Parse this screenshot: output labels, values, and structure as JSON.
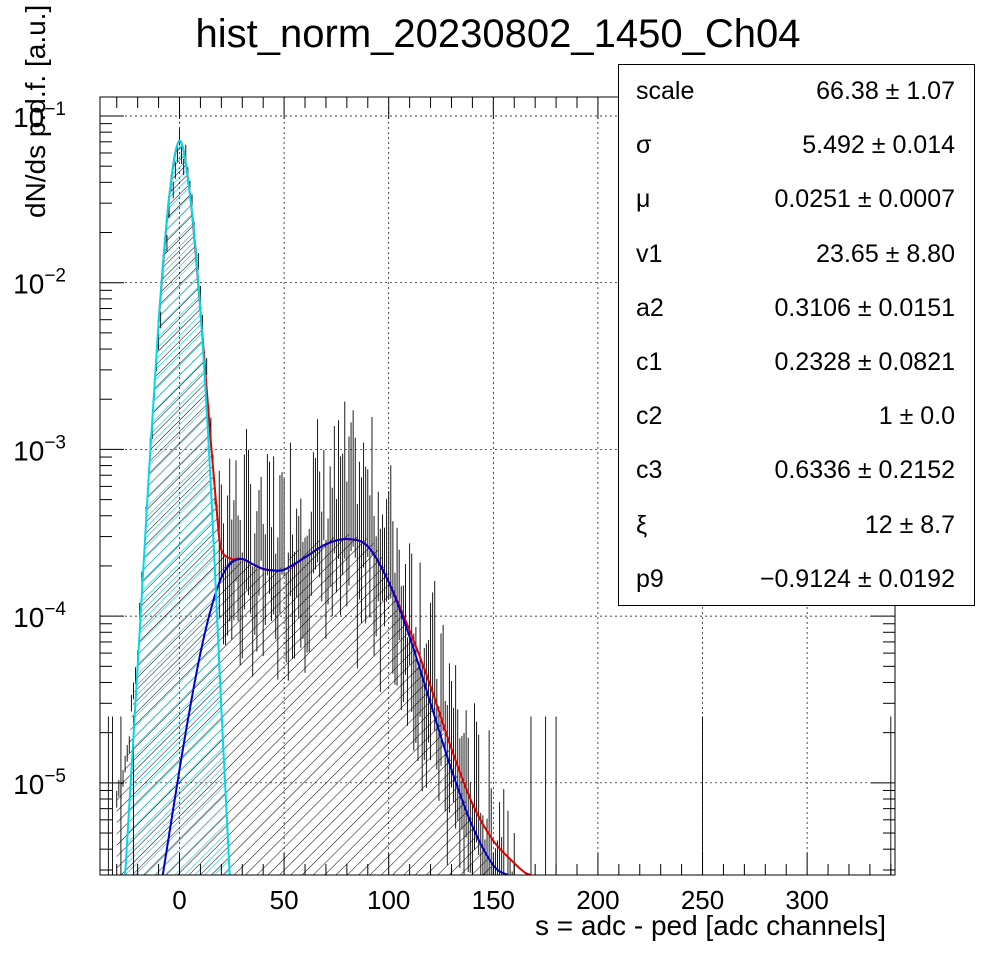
{
  "chart_data": {
    "type": "line",
    "title": "hist_norm_20230802_1450_Ch04",
    "xlabel": "s = adc - ped [adc channels]",
    "ylabel": "dN/ds p.d.f. [a.u.]",
    "xlim": [
      -38,
      342
    ],
    "ylim": [
      2.8e-06,
      0.13
    ],
    "yscale": "log",
    "grid": true,
    "xticks": [
      0,
      50,
      100,
      150,
      200,
      250,
      300
    ],
    "yticks": [
      {
        "value": 0.1,
        "base": "10",
        "exp": "−1"
      },
      {
        "value": 0.01,
        "base": "10",
        "exp": "−2"
      },
      {
        "value": 0.001,
        "base": "10",
        "exp": "−3"
      },
      {
        "value": 0.0001,
        "base": "10",
        "exp": "−4"
      },
      {
        "value": 1e-05,
        "base": "10",
        "exp": "−5"
      }
    ],
    "series": [
      {
        "role": "data histogram",
        "color": "#000000",
        "x": [
          -30,
          -25,
          -20,
          -15,
          -10,
          -5,
          0,
          5,
          10,
          15,
          18,
          20,
          25,
          30,
          35,
          40,
          45,
          50,
          55,
          60,
          65,
          70,
          75,
          80,
          85,
          90,
          95,
          100,
          105,
          110,
          115,
          120,
          125,
          130,
          135,
          140,
          145,
          150
        ],
        "y": [
          8e-06,
          1.5e-05,
          6e-05,
          0.00065,
          0.005,
          0.028,
          0.07,
          0.04,
          0.009,
          0.0012,
          0.0004,
          0.00025,
          0.00022,
          0.00021,
          0.0002,
          0.00018,
          0.00019,
          0.0002,
          0.00024,
          0.00026,
          0.00028,
          0.00029,
          0.0003,
          0.00031,
          0.0003,
          0.00029,
          0.00025,
          0.00018,
          0.00012,
          8e-05,
          5e-05,
          3.3e-05,
          2.2e-05,
          1.4e-05,
          9e-06,
          6e-06,
          4e-06,
          3e-06
        ]
      },
      {
        "role": "total fit",
        "color": "#e00000",
        "x": [
          -10,
          -5,
          0,
          5,
          10,
          15,
          18,
          20,
          25,
          30,
          40,
          50,
          60,
          70,
          80,
          90,
          100,
          110,
          120,
          130,
          140,
          150,
          160,
          165,
          168
        ],
        "y": [
          0.0058,
          0.032,
          0.071,
          0.034,
          0.0068,
          0.0011,
          0.0004,
          0.00025,
          0.00022,
          0.00022,
          0.000192,
          0.00019,
          0.000225,
          0.00027,
          0.00029,
          0.000262,
          0.00016,
          8.2e-05,
          3.8e-05,
          1.6e-05,
          7.5e-06,
          4.5e-06,
          3.3e-06,
          2.9e-06,
          2.8e-06
        ]
      },
      {
        "role": "pedestal component",
        "color": "#00d8f0",
        "x": [
          -26,
          -20,
          -15,
          -10,
          -5,
          0,
          5,
          10,
          15,
          20,
          24
        ],
        "y": [
          2.8e-06,
          5e-05,
          0.0006,
          0.0058,
          0.032,
          0.071,
          0.034,
          0.0068,
          0.0006,
          2.8e-05,
          2.8e-06
        ]
      },
      {
        "role": "signal component",
        "color": "#0000cc",
        "x": [
          -8,
          0,
          5,
          10,
          15,
          20,
          25,
          30,
          35,
          40,
          45,
          50,
          60,
          70,
          80,
          90,
          100,
          110,
          120,
          130,
          140,
          150,
          157
        ],
        "y": [
          2.8e-06,
          1.2e-05,
          2.8e-05,
          6e-05,
          0.00011,
          0.00017,
          0.00021,
          0.00022,
          0.000205,
          0.000192,
          0.000188,
          0.00019,
          0.000225,
          0.00027,
          0.00029,
          0.000262,
          0.00016,
          7.5e-05,
          3e-05,
          1.2e-05,
          5.5e-06,
          3.2e-06,
          2.8e-06
        ]
      }
    ],
    "stats_box": [
      {
        "name": "scale",
        "value": "66.38 ± 1.07"
      },
      {
        "name": "σ",
        "value": "5.492 ± 0.014"
      },
      {
        "name": "μ",
        "value": "0.0251 ± 0.0007"
      },
      {
        "name": "v1",
        "value": "23.65 ± 8.80"
      },
      {
        "name": "a2",
        "value": "0.3106 ± 0.0151"
      },
      {
        "name": "c1",
        "value": "0.2328 ± 0.0821"
      },
      {
        "name": "c2",
        "value": "1 ± 0.0"
      },
      {
        "name": "c3",
        "value": "0.6336 ± 0.2152"
      },
      {
        "name": "ξ",
        "value": "12 ± 8.7"
      },
      {
        "name": "p9",
        "value": "−0.9124 ± 0.0192"
      }
    ]
  }
}
